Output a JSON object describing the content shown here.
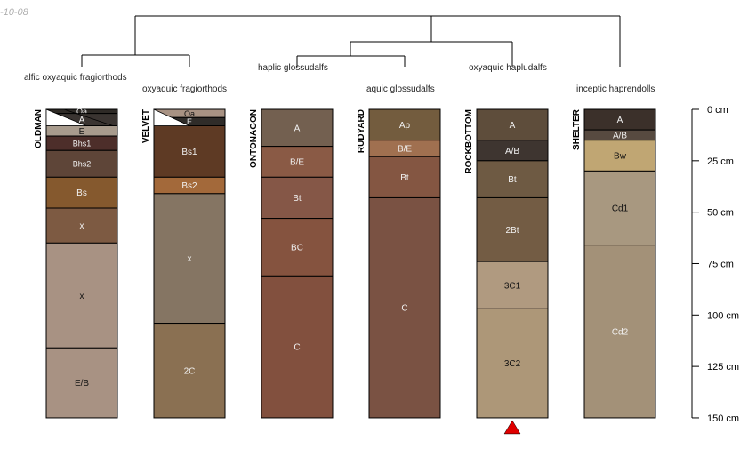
{
  "date_stamp": "-10-08",
  "colors": {
    "line": "#000000",
    "marker": "#e00000",
    "horizon_label_light": "#f2f2f2",
    "horizon_label_dark": "#111111"
  },
  "depth_axis": {
    "max_depth_cm": 150,
    "ticks": [
      {
        "value": 0,
        "label": "0 cm"
      },
      {
        "value": 25,
        "label": "25 cm"
      },
      {
        "value": 50,
        "label": "50 cm"
      },
      {
        "value": 75,
        "label": "75 cm"
      },
      {
        "value": 100,
        "label": "100 cm"
      },
      {
        "value": 125,
        "label": "125 cm"
      },
      {
        "value": 150,
        "label": "150 cm"
      }
    ]
  },
  "subgroups": [
    {
      "label": "alfic oxyaquic fragiorthods"
    },
    {
      "label": "oxyaquic fragiorthods"
    },
    {
      "label": "haplic glossudalfs"
    },
    {
      "label": "aquic glossudalfs"
    },
    {
      "label": "oxyaquic hapludalfs"
    },
    {
      "label": "inceptic haprendolls"
    }
  ],
  "profiles": [
    {
      "name": "OLDMAN",
      "horizons": [
        {
          "label": "Oa",
          "top": 0,
          "bottom": 2,
          "color": "#2e2a26"
        },
        {
          "label": "A",
          "top": 2,
          "bottom": 8,
          "color": "#3a3431"
        },
        {
          "label": "E",
          "top": 8,
          "bottom": 13,
          "color": "#a89b8d"
        },
        {
          "label": "Bhs1",
          "top": 13,
          "bottom": 20,
          "color": "#4d2e2a"
        },
        {
          "label": "Bhs2",
          "top": 20,
          "bottom": 33,
          "color": "#5e4538"
        },
        {
          "label": "Bs",
          "top": 33,
          "bottom": 48,
          "color": "#85592e"
        },
        {
          "label": "x",
          "top": 48,
          "bottom": 65,
          "color": "#7d5a42"
        },
        {
          "label": "x",
          "top": 65,
          "bottom": 116,
          "color": "#a89283"
        },
        {
          "label": "E/B",
          "top": 116,
          "bottom": 150,
          "color": "#a89283"
        }
      ]
    },
    {
      "name": "VELVET",
      "horizons": [
        {
          "label": "Oa",
          "top": 0,
          "bottom": 4,
          "color": "#a89283"
        },
        {
          "label": "E",
          "top": 4,
          "bottom": 8,
          "color": "#2f2c29"
        },
        {
          "label": "Bs1",
          "top": 8,
          "bottom": 33,
          "color": "#5e3a24"
        },
        {
          "label": "Bs2",
          "top": 33,
          "bottom": 41,
          "color": "#a3693a"
        },
        {
          "label": "x",
          "top": 41,
          "bottom": 104,
          "color": "#857563"
        },
        {
          "label": "2C",
          "top": 104,
          "bottom": 150,
          "color": "#8a7052"
        }
      ]
    },
    {
      "name": "ONTONAGON",
      "horizons": [
        {
          "label": "A",
          "top": 0,
          "bottom": 18,
          "color": "#736050"
        },
        {
          "label": "B/E",
          "top": 18,
          "bottom": 33,
          "color": "#8a5a45"
        },
        {
          "label": "Bt",
          "top": 33,
          "bottom": 53,
          "color": "#855747"
        },
        {
          "label": "BC",
          "top": 53,
          "bottom": 81,
          "color": "#85533f"
        },
        {
          "label": "C",
          "top": 81,
          "bottom": 150,
          "color": "#82503e"
        }
      ]
    },
    {
      "name": "RUDYARD",
      "horizons": [
        {
          "label": "Ap",
          "top": 0,
          "bottom": 15,
          "color": "#735c3e"
        },
        {
          "label": "B/E",
          "top": 15,
          "bottom": 23,
          "color": "#a07050"
        },
        {
          "label": "Bt",
          "top": 23,
          "bottom": 43,
          "color": "#845642"
        },
        {
          "label": "C",
          "top": 43,
          "bottom": 150,
          "color": "#7a5243"
        }
      ]
    },
    {
      "name": "ROCKBOTTOM",
      "horizons": [
        {
          "label": "A",
          "top": 0,
          "bottom": 15,
          "color": "#5e4d3b"
        },
        {
          "label": "A/B",
          "top": 15,
          "bottom": 25,
          "color": "#3e3530"
        },
        {
          "label": "Bt",
          "top": 25,
          "bottom": 43,
          "color": "#6e5a43"
        },
        {
          "label": "2Bt",
          "top": 43,
          "bottom": 74,
          "color": "#735c44"
        },
        {
          "label": "3C1",
          "top": 74,
          "bottom": 97,
          "color": "#b09a80"
        },
        {
          "label": "3C2",
          "top": 97,
          "bottom": 150,
          "color": "#ad9778"
        }
      ]
    },
    {
      "name": "SHELTER",
      "horizons": [
        {
          "label": "A",
          "top": 0,
          "bottom": 10,
          "color": "#3b302a"
        },
        {
          "label": "A/B",
          "top": 10,
          "bottom": 15,
          "color": "#574a40"
        },
        {
          "label": "Bw",
          "top": 15,
          "bottom": 30,
          "color": "#c0a673"
        },
        {
          "label": "Cd1",
          "top": 30,
          "bottom": 66,
          "color": "#a89880"
        },
        {
          "label": "Cd2",
          "top": 66,
          "bottom": 150,
          "color": "#a39178"
        }
      ]
    }
  ],
  "marker": {
    "profile": "ROCKBOTTOM",
    "shape": "triangle-up"
  }
}
